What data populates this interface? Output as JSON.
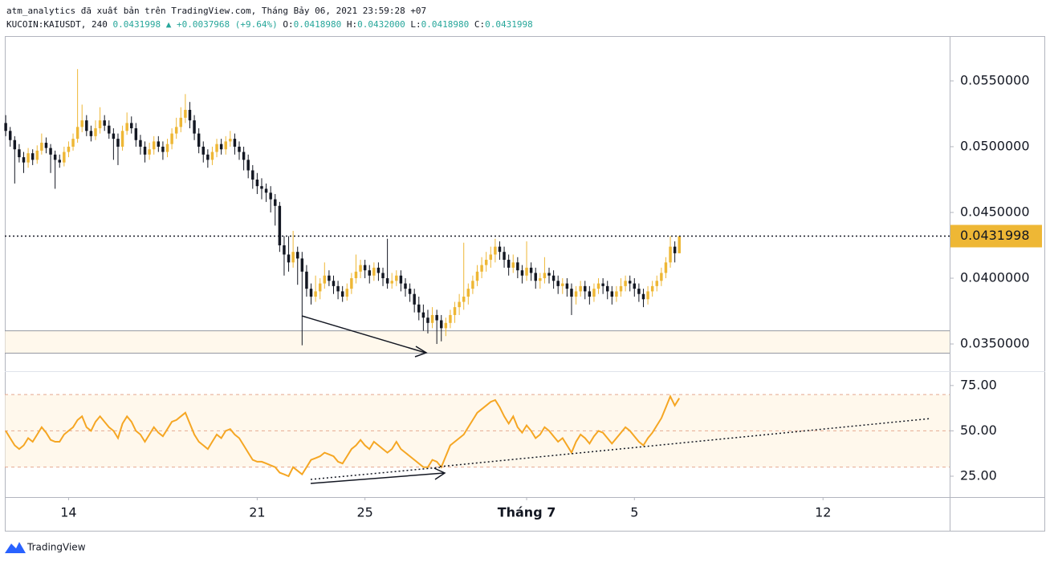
{
  "header": {
    "publisher": "atm_analytics đã xuất bản trên TradingView.com, Tháng Bảy 06, 2021 23:59:28 +07",
    "symbol": "KUCOIN:KAIUSDT, 240",
    "last": "0.0431998",
    "change": "+0.0037968 (+9.64%)",
    "ohlc": [
      {
        "label": "O:",
        "value": "0.0418980"
      },
      {
        "label": "H:",
        "value": "0.0432000"
      },
      {
        "label": "L:",
        "value": "0.0418980"
      },
      {
        "label": "C:",
        "value": "0.0431998"
      }
    ]
  },
  "footer": {
    "brand": "TradingView"
  },
  "chart_data": [
    {
      "type": "candlestick",
      "up_color": "#eeb735",
      "down_color": "#131722",
      "xlim": [
        -0.2,
        210.2
      ],
      "xticks": [
        {
          "value": 14,
          "label": "14"
        },
        {
          "value": 56,
          "label": "21"
        },
        {
          "value": 80,
          "label": "25"
        },
        {
          "value": 116,
          "label": "Tháng 7"
        },
        {
          "value": 140,
          "label": "5"
        },
        {
          "value": 182,
          "label": "12"
        }
      ],
      "ylim": [
        0.03293,
        0.05841
      ],
      "yticks": [
        {
          "value": 0.035,
          "label": "0.0350000"
        },
        {
          "value": 0.04,
          "label": "0.0400000"
        },
        {
          "value": 0.045,
          "label": "0.0450000"
        },
        {
          "value": 0.05,
          "label": "0.0500000"
        },
        {
          "value": 0.055,
          "label": "0.0550000"
        }
      ],
      "zone": [
        0.0343,
        0.036
      ],
      "ohlc": [
        [
          0.0518,
          0.0524,
          0.0508,
          0.0512
        ],
        [
          0.0512,
          0.0515,
          0.05,
          0.0505
        ],
        [
          0.0505,
          0.0508,
          0.0472,
          0.0498
        ],
        [
          0.0498,
          0.0502,
          0.0488,
          0.0492
        ],
        [
          0.0492,
          0.0496,
          0.048,
          0.0488
        ],
        [
          0.0488,
          0.0499,
          0.0484,
          0.0495
        ],
        [
          0.0495,
          0.0498,
          0.0486,
          0.049
        ],
        [
          0.049,
          0.0501,
          0.0487,
          0.0497
        ],
        [
          0.0497,
          0.051,
          0.0494,
          0.0503
        ],
        [
          0.0503,
          0.0507,
          0.0495,
          0.0499
        ],
        [
          0.0499,
          0.0502,
          0.048,
          0.0494
        ],
        [
          0.0494,
          0.0497,
          0.0468,
          0.049
        ],
        [
          0.049,
          0.0494,
          0.0484,
          0.0488
        ],
        [
          0.0488,
          0.05,
          0.0485,
          0.0496
        ],
        [
          0.0496,
          0.0504,
          0.0492,
          0.05
        ],
        [
          0.05,
          0.051,
          0.0497,
          0.0506
        ],
        [
          0.0506,
          0.0559,
          0.0503,
          0.0515
        ],
        [
          0.0515,
          0.0532,
          0.0511,
          0.052
        ],
        [
          0.052,
          0.0524,
          0.0508,
          0.0512
        ],
        [
          0.0512,
          0.0516,
          0.0504,
          0.0508
        ],
        [
          0.0508,
          0.052,
          0.0505,
          0.0514
        ],
        [
          0.0514,
          0.053,
          0.051,
          0.052
        ],
        [
          0.052,
          0.0524,
          0.0512,
          0.0516
        ],
        [
          0.0516,
          0.052,
          0.0506,
          0.051
        ],
        [
          0.051,
          0.0514,
          0.049,
          0.0506
        ],
        [
          0.0506,
          0.051,
          0.0486,
          0.05
        ],
        [
          0.05,
          0.0516,
          0.0497,
          0.0512
        ],
        [
          0.0512,
          0.0526,
          0.0509,
          0.0518
        ],
        [
          0.0518,
          0.0523,
          0.051,
          0.0514
        ],
        [
          0.0514,
          0.0518,
          0.05,
          0.0505
        ],
        [
          0.0505,
          0.0509,
          0.0494,
          0.05
        ],
        [
          0.05,
          0.0504,
          0.0488,
          0.0494
        ],
        [
          0.0494,
          0.0503,
          0.049,
          0.0498
        ],
        [
          0.0498,
          0.0508,
          0.0494,
          0.0504
        ],
        [
          0.0504,
          0.0508,
          0.0496,
          0.05
        ],
        [
          0.05,
          0.0504,
          0.049,
          0.0496
        ],
        [
          0.0496,
          0.0506,
          0.0492,
          0.0502
        ],
        [
          0.0502,
          0.0514,
          0.0498,
          0.051
        ],
        [
          0.051,
          0.0522,
          0.0506,
          0.0515
        ],
        [
          0.0515,
          0.053,
          0.0511,
          0.0522
        ],
        [
          0.0522,
          0.054,
          0.0518,
          0.0528
        ],
        [
          0.0528,
          0.0534,
          0.0514,
          0.052
        ],
        [
          0.052,
          0.0524,
          0.0505,
          0.051
        ],
        [
          0.051,
          0.0514,
          0.0495,
          0.05
        ],
        [
          0.05,
          0.0504,
          0.0488,
          0.0494
        ],
        [
          0.0494,
          0.0498,
          0.0484,
          0.049
        ],
        [
          0.049,
          0.05,
          0.0486,
          0.0496
        ],
        [
          0.0496,
          0.0506,
          0.0492,
          0.0502
        ],
        [
          0.0502,
          0.0506,
          0.0494,
          0.0498
        ],
        [
          0.0498,
          0.0508,
          0.0494,
          0.0504
        ],
        [
          0.0504,
          0.0512,
          0.05,
          0.0506
        ],
        [
          0.0506,
          0.051,
          0.0494,
          0.05
        ],
        [
          0.05,
          0.0504,
          0.049,
          0.0496
        ],
        [
          0.0496,
          0.05,
          0.0482,
          0.049
        ],
        [
          0.049,
          0.0494,
          0.0476,
          0.0482
        ],
        [
          0.0482,
          0.0486,
          0.0468,
          0.0475
        ],
        [
          0.0475,
          0.048,
          0.0464,
          0.047
        ],
        [
          0.047,
          0.0476,
          0.046,
          0.0468
        ],
        [
          0.0468,
          0.0472,
          0.0458,
          0.0465
        ],
        [
          0.0465,
          0.047,
          0.045,
          0.046
        ],
        [
          0.046,
          0.0464,
          0.044,
          0.0455
        ],
        [
          0.0455,
          0.0458,
          0.042,
          0.0425
        ],
        [
          0.0425,
          0.0432,
          0.0402,
          0.0418
        ],
        [
          0.0418,
          0.0432,
          0.0405,
          0.0412
        ],
        [
          0.0412,
          0.0436,
          0.0408,
          0.042
        ],
        [
          0.042,
          0.0424,
          0.0395,
          0.0415
        ],
        [
          0.0415,
          0.042,
          0.0349,
          0.0405
        ],
        [
          0.0405,
          0.041,
          0.0386,
          0.0392
        ],
        [
          0.0392,
          0.0396,
          0.038,
          0.0386
        ],
        [
          0.0386,
          0.0402,
          0.0382,
          0.039
        ],
        [
          0.039,
          0.04,
          0.0384,
          0.0396
        ],
        [
          0.0396,
          0.0412,
          0.0392,
          0.0402
        ],
        [
          0.0402,
          0.0406,
          0.0394,
          0.0398
        ],
        [
          0.0398,
          0.0402,
          0.0388,
          0.0394
        ],
        [
          0.0394,
          0.0398,
          0.0384,
          0.039
        ],
        [
          0.039,
          0.0394,
          0.0382,
          0.0386
        ],
        [
          0.0386,
          0.0396,
          0.0383,
          0.0392
        ],
        [
          0.0392,
          0.0404,
          0.0388,
          0.04
        ],
        [
          0.04,
          0.0418,
          0.0396,
          0.0405
        ],
        [
          0.0405,
          0.0414,
          0.04,
          0.041
        ],
        [
          0.041,
          0.0414,
          0.04,
          0.0406
        ],
        [
          0.0406,
          0.041,
          0.0396,
          0.0402
        ],
        [
          0.0402,
          0.0412,
          0.0398,
          0.0408
        ],
        [
          0.0408,
          0.0412,
          0.0398,
          0.0404
        ],
        [
          0.0404,
          0.0408,
          0.0394,
          0.04
        ],
        [
          0.04,
          0.043,
          0.0392,
          0.0396
        ],
        [
          0.0396,
          0.0404,
          0.0392,
          0.0398
        ],
        [
          0.0398,
          0.0406,
          0.0394,
          0.0402
        ],
        [
          0.0402,
          0.0406,
          0.039,
          0.0396
        ],
        [
          0.0396,
          0.04,
          0.0386,
          0.0392
        ],
        [
          0.0392,
          0.0396,
          0.0382,
          0.0388
        ],
        [
          0.0388,
          0.0392,
          0.0374,
          0.038
        ],
        [
          0.038,
          0.0386,
          0.0368,
          0.0374
        ],
        [
          0.0374,
          0.038,
          0.036,
          0.037
        ],
        [
          0.037,
          0.0376,
          0.0358,
          0.0366
        ],
        [
          0.0366,
          0.0378,
          0.0362,
          0.0372
        ],
        [
          0.0372,
          0.0376,
          0.035,
          0.0368
        ],
        [
          0.0368,
          0.0372,
          0.0352,
          0.0362
        ],
        [
          0.0362,
          0.037,
          0.0356,
          0.0366
        ],
        [
          0.0366,
          0.0376,
          0.0362,
          0.0372
        ],
        [
          0.0372,
          0.0382,
          0.0366,
          0.0378
        ],
        [
          0.0378,
          0.0388,
          0.0372,
          0.0382
        ],
        [
          0.0382,
          0.0427,
          0.0376,
          0.0386
        ],
        [
          0.0386,
          0.0396,
          0.038,
          0.0392
        ],
        [
          0.0392,
          0.0402,
          0.0388,
          0.0398
        ],
        [
          0.0398,
          0.041,
          0.0394,
          0.0405
        ],
        [
          0.0405,
          0.0416,
          0.04,
          0.041
        ],
        [
          0.041,
          0.042,
          0.0405,
          0.0414
        ],
        [
          0.0414,
          0.0424,
          0.0408,
          0.0418
        ],
        [
          0.0418,
          0.043,
          0.0412,
          0.0424
        ],
        [
          0.0424,
          0.0428,
          0.0414,
          0.042
        ],
        [
          0.042,
          0.0424,
          0.0408,
          0.0414
        ],
        [
          0.0414,
          0.0418,
          0.0402,
          0.0408
        ],
        [
          0.0408,
          0.0418,
          0.0404,
          0.0412
        ],
        [
          0.0412,
          0.0416,
          0.04,
          0.0406
        ],
        [
          0.0406,
          0.041,
          0.0396,
          0.0402
        ],
        [
          0.0402,
          0.0428,
          0.0398,
          0.0408
        ],
        [
          0.0408,
          0.0412,
          0.0398,
          0.0404
        ],
        [
          0.0404,
          0.0408,
          0.0392,
          0.0398
        ],
        [
          0.0398,
          0.0404,
          0.0392,
          0.04
        ],
        [
          0.04,
          0.0416,
          0.0396,
          0.0404
        ],
        [
          0.0404,
          0.0408,
          0.0396,
          0.0402
        ],
        [
          0.0402,
          0.0406,
          0.0392,
          0.0398
        ],
        [
          0.0398,
          0.0402,
          0.0388,
          0.0394
        ],
        [
          0.0394,
          0.04,
          0.0388,
          0.0396
        ],
        [
          0.0396,
          0.04,
          0.0386,
          0.0392
        ],
        [
          0.0392,
          0.0396,
          0.0372,
          0.0386
        ],
        [
          0.0386,
          0.0394,
          0.038,
          0.039
        ],
        [
          0.039,
          0.0398,
          0.0386,
          0.0394
        ],
        [
          0.0394,
          0.0398,
          0.0384,
          0.039
        ],
        [
          0.039,
          0.0394,
          0.038,
          0.0386
        ],
        [
          0.0386,
          0.0396,
          0.0382,
          0.0392
        ],
        [
          0.0392,
          0.04,
          0.0388,
          0.0396
        ],
        [
          0.0396,
          0.04,
          0.0388,
          0.0394
        ],
        [
          0.0394,
          0.0398,
          0.0384,
          0.039
        ],
        [
          0.039,
          0.0394,
          0.038,
          0.0386
        ],
        [
          0.0386,
          0.0394,
          0.0382,
          0.039
        ],
        [
          0.039,
          0.04,
          0.0386,
          0.0394
        ],
        [
          0.0394,
          0.0402,
          0.039,
          0.0398
        ],
        [
          0.0398,
          0.0402,
          0.039,
          0.0396
        ],
        [
          0.0396,
          0.04,
          0.0386,
          0.0392
        ],
        [
          0.0392,
          0.0396,
          0.0382,
          0.0388
        ],
        [
          0.0388,
          0.0392,
          0.0378,
          0.0384
        ],
        [
          0.0384,
          0.0394,
          0.038,
          0.039
        ],
        [
          0.039,
          0.0398,
          0.0386,
          0.0394
        ],
        [
          0.0394,
          0.0402,
          0.039,
          0.0398
        ],
        [
          0.0398,
          0.0408,
          0.0394,
          0.0404
        ],
        [
          0.0404,
          0.0416,
          0.04,
          0.0412
        ],
        [
          0.0412,
          0.0432,
          0.0408,
          0.0424
        ],
        [
          0.0424,
          0.0428,
          0.0412,
          0.041898
        ],
        [
          0.041898,
          0.0432,
          0.041898,
          0.0431998
        ]
      ]
    },
    {
      "type": "line",
      "color": "#f5a623",
      "xlim": [
        -0.2,
        210.2
      ],
      "ylim": [
        13.5,
        82.9
      ],
      "yticks": [
        {
          "value": 25,
          "label": "25.00"
        },
        {
          "value": 50,
          "label": "50.00"
        },
        {
          "value": 75,
          "label": "75.00"
        }
      ],
      "levels": [
        30,
        50,
        70
      ],
      "values": [
        50,
        46,
        42,
        40,
        42,
        46,
        44,
        48,
        52,
        49,
        45,
        44,
        44,
        48,
        50,
        52,
        56,
        58,
        52,
        50,
        55,
        58,
        55,
        52,
        50,
        46,
        54,
        58,
        55,
        50,
        48,
        44,
        48,
        52,
        49,
        47,
        51,
        55,
        56,
        58,
        60,
        54,
        48,
        44,
        42,
        40,
        44,
        48,
        46,
        50,
        51,
        48,
        46,
        42,
        38,
        34,
        33,
        33,
        32,
        31,
        30,
        27,
        26,
        25,
        30,
        28,
        26,
        30,
        34,
        35,
        36,
        38,
        37,
        36,
        33,
        32,
        36,
        40,
        42,
        45,
        42,
        40,
        44,
        42,
        40,
        38,
        40,
        44,
        40,
        38,
        36,
        34,
        32,
        30,
        30,
        34,
        33,
        30,
        36,
        42,
        44,
        46,
        48,
        52,
        56,
        60,
        62,
        64,
        66,
        67,
        63,
        58,
        54,
        58,
        52,
        49,
        53,
        50,
        46,
        48,
        52,
        50,
        47,
        44,
        46,
        42,
        38,
        44,
        48,
        46,
        43,
        47,
        50,
        49,
        46,
        43,
        46,
        49,
        52,
        50,
        47,
        44,
        42,
        46,
        49,
        53,
        57,
        63,
        69,
        64,
        68
      ]
    }
  ]
}
